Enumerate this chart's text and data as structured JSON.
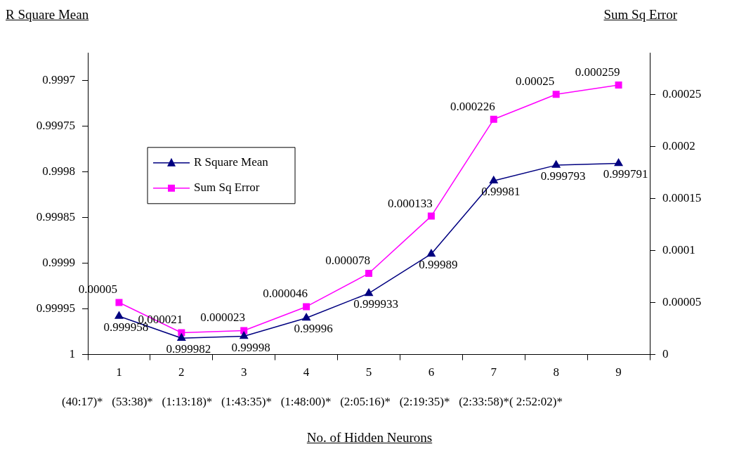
{
  "chart_data": {
    "type": "line",
    "ylabel": "R Square Mean",
    "y2label": "Sum Sq Error",
    "xlabel": "No. of Hidden Neurons",
    "categories": [
      "1",
      "2",
      "3",
      "4",
      "5",
      "6",
      "7",
      "8",
      "9"
    ],
    "series": [
      {
        "name": "R Square Mean",
        "color": "#000080",
        "marker": "triangle",
        "values": [
          0.999958,
          0.999982,
          0.99998,
          0.99996,
          0.999933,
          0.99989,
          0.99981,
          0.999793,
          0.999791
        ]
      },
      {
        "name": "Sum Sq Error",
        "color": "#ff00ff",
        "marker": "square",
        "axis": "y2",
        "values": [
          5e-05,
          2.1e-05,
          2.3e-05,
          4.6e-05,
          7.8e-05,
          0.000133,
          0.000226,
          0.00025,
          0.000259
        ],
        "value_labels": [
          "0.00005",
          "0.000021",
          "0.000023",
          "0.000046",
          "0.000078",
          "0.000133",
          "0.000226",
          "0.00025",
          "0.000259"
        ]
      }
    ],
    "ylim": [
      1,
      0.99967
    ],
    "yticks": [
      1,
      0.99995,
      0.9999,
      0.99985,
      0.9998,
      0.99975,
      0.9997
    ],
    "y2lim": [
      0,
      0.00029
    ],
    "y2ticks": [
      0,
      {
        "value": 5e-05,
        "label": "0.00005"
      },
      0.0001,
      0.00015,
      0.0002,
      0.00025
    ],
    "annotations": [
      "(40:17)*   (53:38)*   (1:13:18)*   (1:43:35)*   (1:48:00)*   (2:05:16)*   (2:19:35)*   (2:33:58)*( 2:52:02)*"
    ],
    "data_labels": true,
    "grid": false,
    "legend": "left",
    "line_style": "solid"
  }
}
